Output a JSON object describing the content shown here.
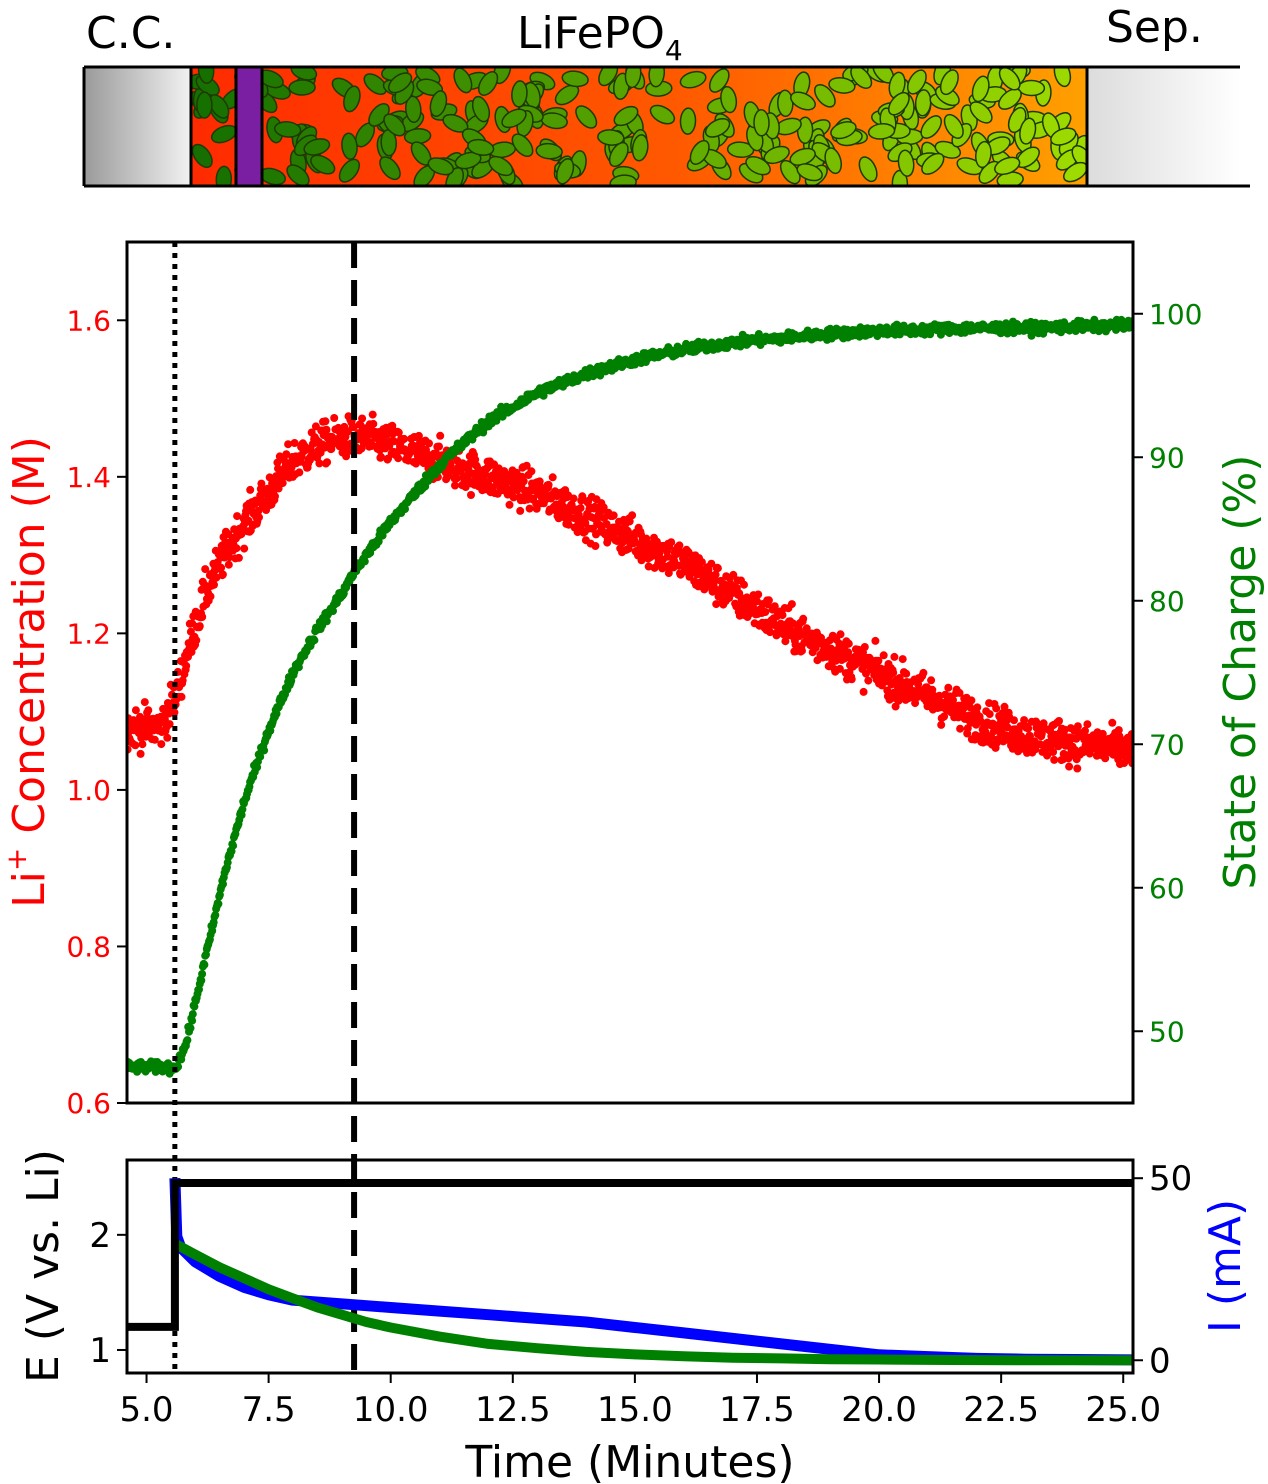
{
  "colors": {
    "concentration": "#ff0000",
    "soc": "#008000",
    "potential": "#000000",
    "current": "#0000ff",
    "marker": "#7b1fa2"
  },
  "schematic": {
    "left_label": "C.C.",
    "center_label_main": "LiFePO",
    "center_label_sub": "4",
    "right_label": "Sep."
  },
  "chart_data": [
    {
      "type": "scatter",
      "title": "",
      "xlim": [
        4.6,
        25.2
      ],
      "left_axis": {
        "label_main": "Li",
        "label_sup": "+",
        "label_rest": " Concentration (M)",
        "ylim": [
          0.6,
          1.7
        ],
        "ticks": [
          0.6,
          0.8,
          1.0,
          1.2,
          1.4,
          1.6
        ],
        "tick_labels": [
          "0.6",
          "0.8",
          "1.0",
          "1.2",
          "1.4",
          "1.6"
        ]
      },
      "right_axis": {
        "label": "State of Charge (%)",
        "ylim": [
          45,
          105
        ],
        "ticks": [
          50,
          60,
          70,
          80,
          90,
          100
        ],
        "tick_labels": [
          "50",
          "60",
          "70",
          "80",
          "90",
          "100"
        ]
      },
      "series": [
        {
          "axis": "left",
          "x": [
            4.6,
            5.0,
            5.3,
            5.6,
            5.9,
            6.2,
            6.5,
            7.0,
            7.5,
            8.0,
            8.5,
            9.0,
            9.5,
            10.0,
            10.5,
            11.0,
            11.5,
            12.0,
            13.0,
            14.0,
            15.0,
            16.0,
            17.0,
            18.0,
            19.0,
            20.0,
            21.0,
            22.0,
            23.0,
            24.0,
            25.2
          ],
          "y": [
            1.08,
            1.08,
            1.08,
            1.12,
            1.19,
            1.25,
            1.29,
            1.34,
            1.38,
            1.42,
            1.44,
            1.45,
            1.45,
            1.44,
            1.43,
            1.42,
            1.41,
            1.4,
            1.38,
            1.35,
            1.32,
            1.29,
            1.25,
            1.21,
            1.18,
            1.15,
            1.12,
            1.09,
            1.07,
            1.06,
            1.05
          ],
          "noise": 0.025
        },
        {
          "axis": "right",
          "x": [
            4.6,
            5.0,
            5.6,
            5.8,
            6.0,
            6.3,
            6.6,
            7.0,
            7.5,
            8.0,
            8.5,
            9.0,
            9.25,
            10.0,
            11.0,
            12.0,
            13.0,
            14.0,
            15.0,
            16.0,
            17.0,
            18.0,
            19.0,
            20.0,
            21.0,
            22.0,
            23.0,
            24.0,
            25.2
          ],
          "y": [
            47.5,
            47.5,
            47.5,
            49.0,
            52.0,
            56.5,
            61.0,
            66.0,
            71.0,
            75.0,
            78.0,
            80.5,
            82.0,
            85.5,
            89.5,
            92.5,
            94.5,
            95.8,
            96.8,
            97.5,
            98.0,
            98.3,
            98.6,
            98.8,
            98.9,
            99.0,
            99.0,
            99.1,
            99.2
          ],
          "noise": 0.35
        }
      ],
      "vlines": [
        {
          "x": 5.58,
          "style": "dotted"
        },
        {
          "x": 9.25,
          "style": "dashed"
        }
      ]
    },
    {
      "type": "line",
      "title": "",
      "xlim": [
        4.6,
        25.2
      ],
      "xlabel": "Time (Minutes)",
      "xticks": [
        5.0,
        7.5,
        10.0,
        12.5,
        15.0,
        17.5,
        20.0,
        22.5,
        25.0
      ],
      "xtick_labels": [
        "5.0",
        "7.5",
        "10.0",
        "12.5",
        "15.0",
        "17.5",
        "20.0",
        "22.5",
        "25.0"
      ],
      "left_axis": {
        "label": "E (V vs. Li)",
        "ylim": [
          0.8,
          2.65
        ],
        "ticks": [
          1,
          2
        ],
        "tick_labels": [
          "1",
          "2"
        ]
      },
      "right_axis": {
        "label": "I (mA)",
        "ylim": [
          -3.5,
          55
        ],
        "ticks": [
          0,
          50
        ],
        "tick_labels": [
          "0",
          "50"
        ]
      },
      "series": [
        {
          "axis": "left",
          "x": [
            4.6,
            5.58,
            5.58,
            25.2
          ],
          "y": [
            1.2,
            1.2,
            2.45,
            2.45
          ]
        },
        {
          "axis": "right",
          "x": [
            5.58,
            5.62,
            5.7,
            6.0,
            6.5,
            7.0,
            7.5,
            8.0,
            9.0,
            10.0,
            11.0,
            12.0,
            13.0,
            14.0,
            15.0,
            16.0,
            17.0,
            18.0,
            19.0,
            20.0,
            21.0,
            22.0,
            23.0,
            24.0,
            25.2
          ],
          "y": [
            50.0,
            34.0,
            31.0,
            27.0,
            23.0,
            20.0,
            18.0,
            16.5,
            15.5,
            14.5,
            13.5,
            12.5,
            11.5,
            10.5,
            9.0,
            7.5,
            6.0,
            4.5,
            3.0,
            1.5,
            1.0,
            0.5,
            0.3,
            0.2,
            0.1
          ]
        },
        {
          "axis": "right",
          "x": [
            5.58,
            6.0,
            6.5,
            7.0,
            7.5,
            8.0,
            8.5,
            9.0,
            9.5,
            10.0,
            11.0,
            12.0,
            13.0,
            14.0,
            15.0,
            16.0,
            17.0,
            18.0,
            19.0,
            20.0,
            21.0,
            22.0,
            23.0,
            24.0,
            25.2
          ],
          "y": [
            32.0,
            29.0,
            25.5,
            22.5,
            19.5,
            17.0,
            14.5,
            12.5,
            10.5,
            9.0,
            6.5,
            4.5,
            3.3,
            2.3,
            1.6,
            1.1,
            0.7,
            0.5,
            0.3,
            0.2,
            0.1,
            0.05,
            0.0,
            0.0,
            0.0
          ]
        }
      ],
      "vlines": [
        {
          "x": 5.58,
          "style": "dotted"
        },
        {
          "x": 9.25,
          "style": "dashed"
        }
      ]
    }
  ]
}
